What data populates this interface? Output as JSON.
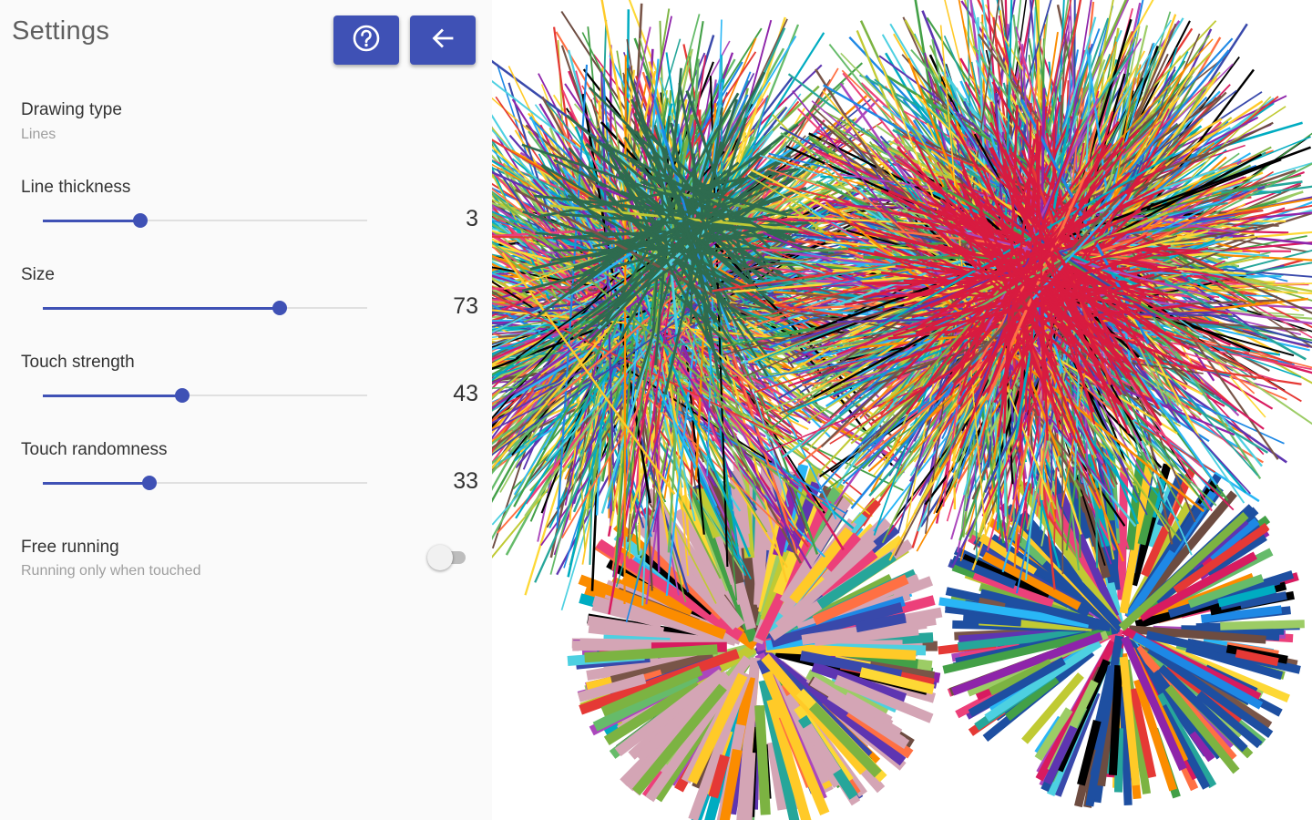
{
  "header": {
    "title": "Settings",
    "help_icon": "help-circle-icon",
    "back_icon": "arrow-back-icon"
  },
  "preferences": {
    "drawing_type": {
      "title": "Drawing type",
      "summary": "Lines"
    },
    "line_thickness": {
      "title": "Line thickness",
      "value": "3",
      "level": 0.3
    },
    "size": {
      "title": "Size",
      "value": "73",
      "level": 0.73
    },
    "touch_strength": {
      "title": "Touch strength",
      "value": "43",
      "level": 0.43
    },
    "touch_randomness": {
      "title": "Touch randomness",
      "value": "33",
      "level": 0.33
    },
    "free_running": {
      "title": "Free running",
      "summary": "Running only when touched",
      "enabled": false
    }
  },
  "colors": {
    "accent": "#3f51b5",
    "track": "#e0e0e0",
    "panel_background": "#fafafa"
  }
}
